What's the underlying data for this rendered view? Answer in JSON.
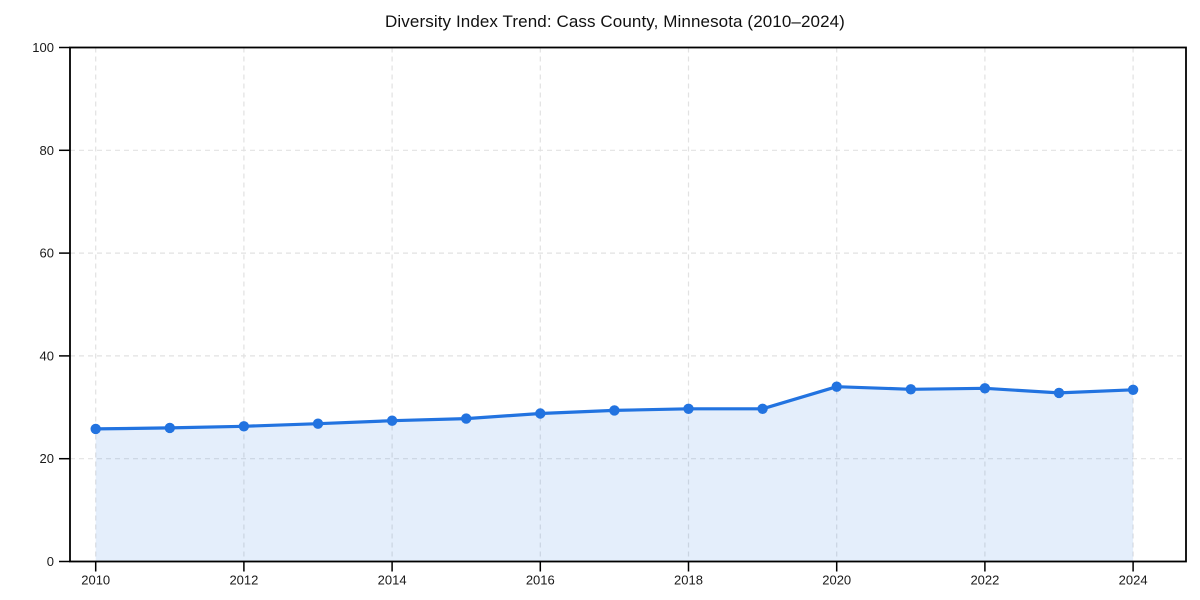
{
  "chart_data": {
    "type": "area",
    "title": "Diversity Index Trend: Cass County, Minnesota (2010–2024)",
    "x": [
      2010,
      2011,
      2012,
      2013,
      2014,
      2015,
      2016,
      2017,
      2018,
      2019,
      2020,
      2021,
      2022,
      2023,
      2024
    ],
    "series": [
      {
        "name": "Diversity Index",
        "values": [
          25.8,
          26.0,
          26.3,
          26.8,
          27.4,
          27.8,
          28.8,
          29.4,
          29.7,
          29.7,
          34.0,
          33.5,
          33.7,
          32.8,
          33.4
        ]
      }
    ],
    "xlabel": "",
    "ylabel": "",
    "ylim": [
      0,
      100
    ],
    "yticks": [
      0,
      20,
      40,
      60,
      80,
      100
    ],
    "xticks": [
      2010,
      2012,
      2014,
      2016,
      2018,
      2020,
      2022,
      2024
    ],
    "grid": true,
    "legend": "none",
    "colors": {
      "line": "#2273e0",
      "marker": "#2273e0",
      "area_fill": "rgba(34,115,224,0.12)",
      "grid": "#e2e2e2",
      "axis": "#000000",
      "tick_text": "#1a1a1a",
      "title_text": "#111111",
      "background": "#ffffff"
    }
  }
}
